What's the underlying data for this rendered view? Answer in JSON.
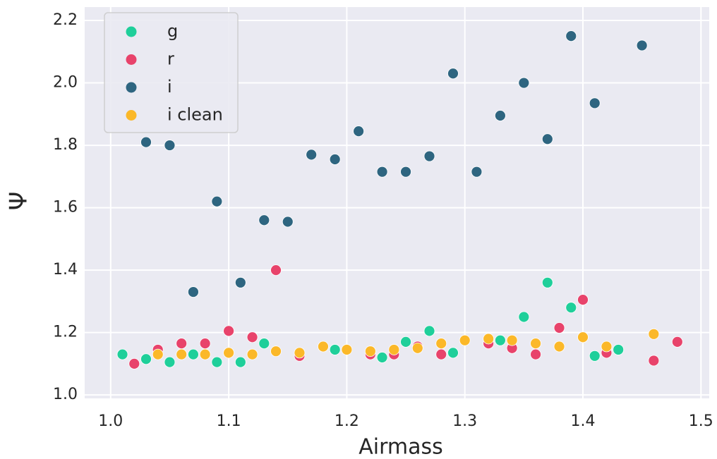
{
  "chart_data": {
    "type": "scatter",
    "xlabel": "Airmass",
    "ylabel": "Ψ",
    "xlim": [
      0.978,
      1.507
    ],
    "ylim": [
      0.989,
      2.243
    ],
    "xticks": [
      {
        "value": 1,
        "label": "1.0"
      },
      1.1,
      1.2,
      1.3,
      1.4,
      1.5
    ],
    "yticks": [
      {
        "value": 1,
        "label": "1.0"
      },
      1.2,
      1.4,
      1.6,
      1.8,
      {
        "value": 2,
        "label": "2.0"
      },
      2.2
    ],
    "grid": true,
    "legend": "upper left",
    "series": [
      {
        "name": "g",
        "color": "#1fcf9a",
        "x": [
          1.01,
          1.03,
          1.05,
          1.07,
          1.09,
          1.11,
          1.13,
          1.19,
          1.23,
          1.25,
          1.27,
          1.29,
          1.33,
          1.35,
          1.37,
          1.39,
          1.41,
          1.43
        ],
        "values": [
          1.13,
          1.115,
          1.105,
          1.13,
          1.105,
          1.105,
          1.165,
          1.145,
          1.12,
          1.17,
          1.205,
          1.135,
          1.175,
          1.25,
          1.36,
          1.28,
          1.125,
          1.145
        ]
      },
      {
        "name": "r",
        "color": "#e8436b",
        "x": [
          1.02,
          1.04,
          1.06,
          1.08,
          1.1,
          1.12,
          1.14,
          1.16,
          1.22,
          1.24,
          1.26,
          1.28,
          1.32,
          1.34,
          1.36,
          1.38,
          1.4,
          1.42,
          1.46,
          1.48
        ],
        "values": [
          1.1,
          1.145,
          1.165,
          1.165,
          1.205,
          1.185,
          1.4,
          1.125,
          1.13,
          1.13,
          1.155,
          1.13,
          1.165,
          1.15,
          1.13,
          1.215,
          1.305,
          1.135,
          1.11,
          1.17
        ]
      },
      {
        "name": "i",
        "color": "#2e6580",
        "x": [
          1.03,
          1.05,
          1.07,
          1.09,
          1.11,
          1.13,
          1.15,
          1.17,
          1.19,
          1.21,
          1.23,
          1.25,
          1.27,
          1.29,
          1.31,
          1.33,
          1.35,
          1.37,
          1.39,
          1.41,
          1.45
        ],
        "values": [
          1.81,
          1.8,
          1.33,
          1.62,
          1.36,
          1.56,
          1.555,
          1.77,
          1.755,
          1.845,
          1.715,
          1.715,
          1.765,
          2.03,
          1.715,
          1.895,
          2.0,
          1.82,
          2.15,
          1.935,
          2.12
        ]
      },
      {
        "name": "i clean",
        "color": "#fbb829",
        "x": [
          1.04,
          1.06,
          1.08,
          1.1,
          1.12,
          1.14,
          1.16,
          1.18,
          1.2,
          1.22,
          1.24,
          1.26,
          1.28,
          1.3,
          1.32,
          1.34,
          1.36,
          1.38,
          1.4,
          1.42,
          1.46
        ],
        "values": [
          1.13,
          1.13,
          1.13,
          1.135,
          1.13,
          1.14,
          1.135,
          1.155,
          1.145,
          1.14,
          1.145,
          1.15,
          1.165,
          1.175,
          1.18,
          1.175,
          1.165,
          1.155,
          1.185,
          1.155,
          1.195
        ]
      }
    ]
  }
}
